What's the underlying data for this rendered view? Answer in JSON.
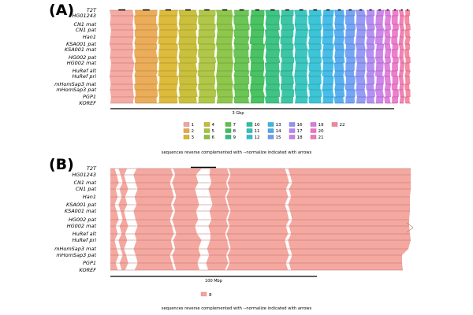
{
  "panel_a": {
    "letter": "(A)",
    "row_labels": [
      "T2T",
      "HG01243",
      "CN1 mat",
      "CN1 pat",
      "Han1",
      "KSA001 pat",
      "KSA001 mat",
      "HG002 pat",
      "HG002 mat",
      "HuRef alt",
      "HuRef pri",
      "mHomSap3 mat",
      "mHomSap3 pat",
      "PGP1",
      "KOREF"
    ],
    "scale_label": "3 Gbp",
    "chromosomes": [
      {
        "name": "1",
        "size_mbp": 248.4,
        "color": "#f4a39b"
      },
      {
        "name": "2",
        "size_mbp": 242.7,
        "color": "#e9a64c"
      },
      {
        "name": "3",
        "size_mbp": 201.1,
        "color": "#d9b52c"
      },
      {
        "name": "4",
        "size_mbp": 193.6,
        "color": "#c6bb2e"
      },
      {
        "name": "5",
        "size_mbp": 182.0,
        "color": "#a9c23a"
      },
      {
        "name": "6",
        "size_mbp": 172.1,
        "color": "#86c23e"
      },
      {
        "name": "7",
        "size_mbp": 160.6,
        "color": "#5fc049"
      },
      {
        "name": "8",
        "size_mbp": 146.3,
        "color": "#3cbe56"
      },
      {
        "name": "9",
        "size_mbp": 150.6,
        "color": "#2fbf7c"
      },
      {
        "name": "10",
        "size_mbp": 134.8,
        "color": "#2cc19e"
      },
      {
        "name": "11",
        "size_mbp": 135.1,
        "color": "#2cc2bc"
      },
      {
        "name": "12",
        "size_mbp": 133.3,
        "color": "#2dbfd3"
      },
      {
        "name": "13",
        "size_mbp": 113.6,
        "color": "#37b7e6"
      },
      {
        "name": "14",
        "size_mbp": 101.2,
        "color": "#4aa9ef"
      },
      {
        "name": "15",
        "size_mbp": 99.8,
        "color": "#6b9df4"
      },
      {
        "name": "16",
        "size_mbp": 96.3,
        "color": "#8f92f5"
      },
      {
        "name": "17",
        "size_mbp": 84.3,
        "color": "#b087f2"
      },
      {
        "name": "18",
        "size_mbp": 80.5,
        "color": "#c97ee8"
      },
      {
        "name": "19",
        "size_mbp": 61.7,
        "color": "#dd78dc"
      },
      {
        "name": "20",
        "size_mbp": 66.2,
        "color": "#ec74c8"
      },
      {
        "name": "21",
        "size_mbp": 45.1,
        "color": "#f178b0"
      },
      {
        "name": "22",
        "size_mbp": 51.3,
        "color": "#f5829c"
      }
    ],
    "footnote": "sequences reverse complemented with --normalize indicated with arrows"
  },
  "panel_b": {
    "letter": "(B)",
    "row_labels": [
      "T2T",
      "HG01243",
      "CN1 mat",
      "CN1 pat",
      "Han1",
      "KSA001 pat",
      "KSA001 mat",
      "HG002 pat",
      "HG002 mat",
      "HuRef alt",
      "HuRef pri",
      "mHomSap3 mat",
      "mHomSap3 pat",
      "PGP1",
      "KOREF"
    ],
    "scale_label": "100 Mbp",
    "chromosome": "8",
    "color": "#f4a39b",
    "footnote": "sequences reverse complemented with --normalize indicated with arrows"
  }
}
